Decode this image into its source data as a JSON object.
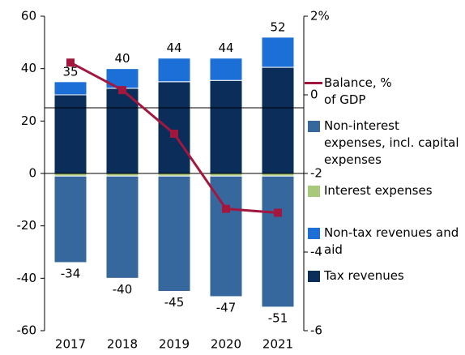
{
  "chart_data": {
    "type": "bar",
    "stacked": true,
    "categories": [
      "2017",
      "2018",
      "2019",
      "2020",
      "2021"
    ],
    "series": [
      {
        "name": "Balance, % of GDP",
        "type": "line",
        "axis": "y2",
        "color": "#a3173f",
        "values": [
          0.82,
          0.12,
          -0.99,
          -2.9,
          -3.0
        ]
      },
      {
        "name": "Non-interest expenses, incl. capital expenses",
        "type": "bar",
        "color": "#36689d",
        "values": [
          -33,
          -39,
          -44,
          -46,
          -50
        ]
      },
      {
        "name": "Interest expenses",
        "type": "bar",
        "color": "#a9c97a",
        "values": [
          -1,
          -1,
          -1,
          -1,
          -1
        ]
      },
      {
        "name": "Non-tax revenues and aid",
        "type": "bar",
        "color": "#1b6fd6",
        "values": [
          5,
          7.5,
          9,
          8.5,
          11.5
        ]
      },
      {
        "name": "Tax revenues",
        "type": "bar",
        "color": "#0b2d59",
        "values": [
          30,
          32.5,
          35,
          35.5,
          40.5
        ]
      }
    ],
    "totals": {
      "positive": [
        35,
        40,
        44,
        44,
        52
      ],
      "negative": [
        -34,
        -40,
        -45,
        -47,
        -51
      ]
    },
    "ylim": [
      -60,
      60
    ],
    "yticks": [
      -60,
      -40,
      -20,
      0,
      20,
      40,
      60
    ],
    "y2lim": [
      -6,
      2
    ],
    "y2ticks": [
      -6,
      -4,
      -2,
      0,
      {
        "value": 2,
        "label": "2%"
      }
    ]
  }
}
